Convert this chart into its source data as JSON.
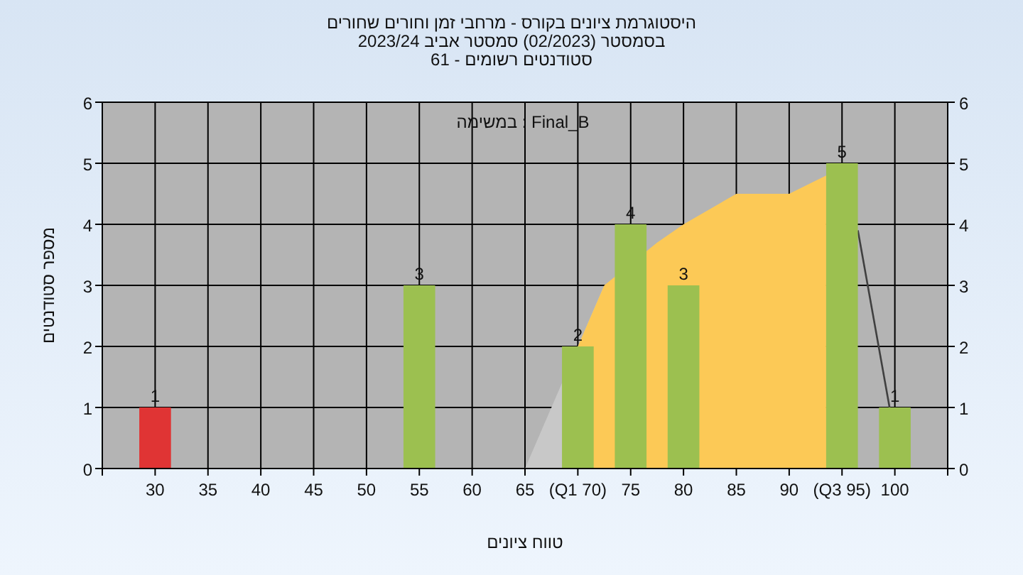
{
  "chart_data": {
    "type": "bar",
    "title": "היסטוגרמת ציונים בקורס - מרחבי זמן וחורים שחורים",
    "subtitle": "בסמסטר  (02/2023)  סמסטר אביב 2023/24\nסטודנטים רשומים - 61",
    "xlabel": "טווח ציונים",
    "ylabel": "מספר סטודנטים",
    "annotations": [
      "במשימה : Final_B"
    ],
    "xlim": [
      25,
      105
    ],
    "xticks": [
      30,
      35,
      40,
      45,
      50,
      55,
      60,
      65,
      {
        "value": 70,
        "label": "(Q1 70)"
      },
      75,
      80,
      85,
      90,
      {
        "value": 95,
        "label": "(Q3 95)"
      },
      100
    ],
    "ylim": [
      0,
      6
    ],
    "yticks": [
      0,
      1,
      2,
      3,
      4,
      5,
      6
    ],
    "y2lim": [
      0,
      6
    ],
    "y2ticks": [
      0,
      1,
      2,
      3,
      4,
      5,
      6
    ],
    "grid": true,
    "series": [
      {
        "type": "area",
        "color": "#c8c8c8",
        "x": [
          65,
          70,
          72.5
        ],
        "values": [
          0,
          2,
          3
        ]
      },
      {
        "type": "area",
        "color": "#fcc956",
        "x": [
          70,
          72.5,
          77.5,
          80,
          85,
          90,
          93.5
        ],
        "values": [
          2,
          3,
          3.7,
          4,
          4.5,
          4.5,
          4.8
        ]
      },
      {
        "type": "line",
        "color": "#404040",
        "x": [
          96.5,
          99.5
        ],
        "values": [
          3.9,
          1
        ]
      },
      {
        "x": [
          30,
          55,
          70,
          75,
          80,
          95,
          100
        ],
        "values": [
          1,
          3,
          2,
          4,
          3,
          5,
          1
        ],
        "value_labels": [
          "1",
          "3",
          "2",
          "4",
          "3",
          "5",
          "1"
        ],
        "colors": [
          "#e03434",
          "#9cc050",
          "#9cc050",
          "#9cc050",
          "#9cc050",
          "#9cc050",
          "#9cc050"
        ]
      }
    ]
  }
}
